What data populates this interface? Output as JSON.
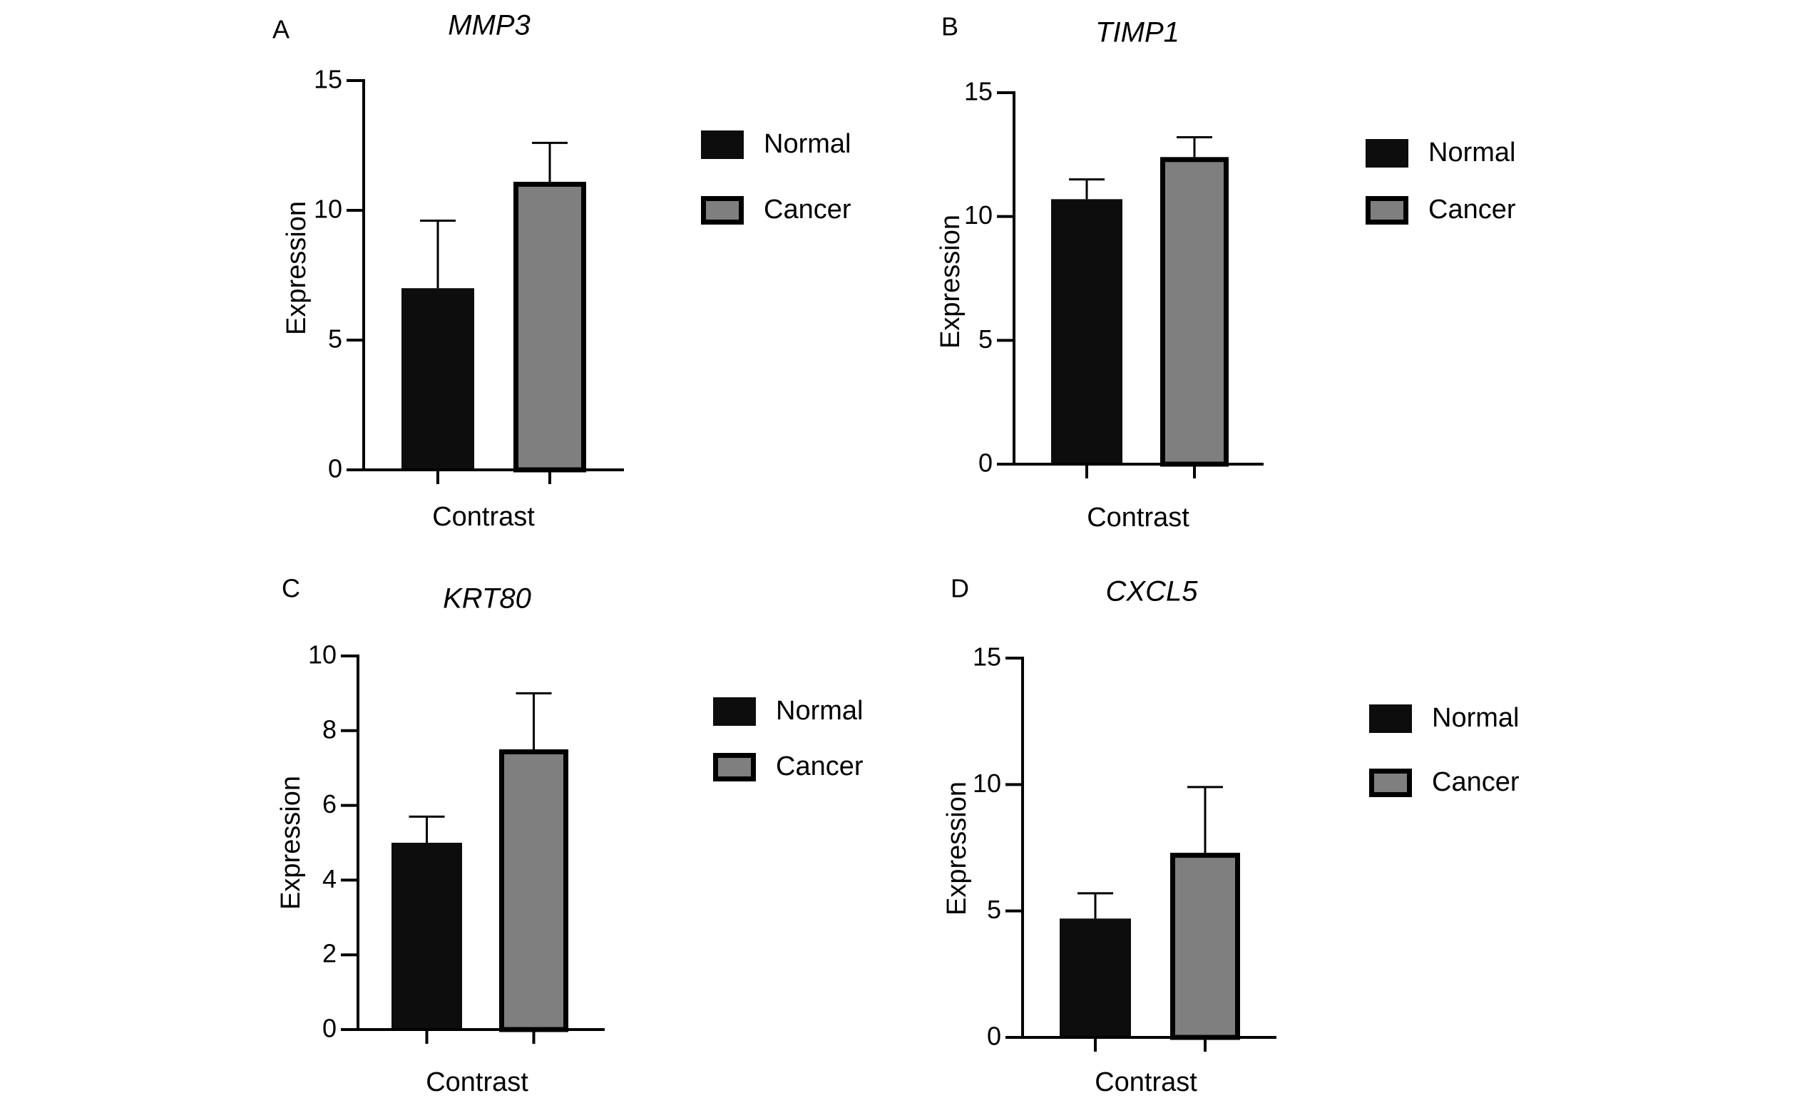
{
  "chart_data": [
    {
      "type": "bar",
      "panel": "A",
      "title": "MMP3",
      "xlabel": "Contrast",
      "ylabel": "Expression",
      "ylim": [
        0,
        15
      ],
      "yticks": [
        "0",
        "5",
        "10",
        "15"
      ],
      "categories": [
        "Contrast"
      ],
      "series": [
        {
          "name": "Normal",
          "values": [
            7.0
          ],
          "error": [
            2.6
          ]
        },
        {
          "name": "Cancer",
          "values": [
            11.1
          ],
          "error": [
            1.5
          ]
        }
      ]
    },
    {
      "type": "bar",
      "panel": "B",
      "title": "TIMP1",
      "xlabel": "Contrast",
      "ylabel": "Expression",
      "ylim": [
        0,
        15
      ],
      "yticks": [
        "0",
        "5",
        "10",
        "15"
      ],
      "categories": [
        "Contrast"
      ],
      "series": [
        {
          "name": "Normal",
          "values": [
            10.7
          ],
          "error": [
            0.8
          ]
        },
        {
          "name": "Cancer",
          "values": [
            12.4
          ],
          "error": [
            0.8
          ]
        }
      ]
    },
    {
      "type": "bar",
      "panel": "C",
      "title": "KRT80",
      "xlabel": "Contrast",
      "ylabel": "Expression",
      "ylim": [
        0,
        10
      ],
      "yticks": [
        "0",
        "2",
        "4",
        "6",
        "8",
        "10"
      ],
      "categories": [
        "Contrast"
      ],
      "series": [
        {
          "name": "Normal",
          "values": [
            5.0
          ],
          "error": [
            0.7
          ]
        },
        {
          "name": "Cancer",
          "values": [
            7.5
          ],
          "error": [
            1.5
          ]
        }
      ]
    },
    {
      "type": "bar",
      "panel": "D",
      "title": "CXCL5",
      "xlabel": "Contrast",
      "ylabel": "Expression",
      "ylim": [
        0,
        15
      ],
      "yticks": [
        "0",
        "5",
        "10",
        "15"
      ],
      "categories": [
        "Contrast"
      ],
      "series": [
        {
          "name": "Normal",
          "values": [
            4.7
          ],
          "error": [
            1.0
          ]
        },
        {
          "name": "Cancer",
          "values": [
            7.3
          ],
          "error": [
            2.6
          ]
        }
      ]
    }
  ],
  "colors": {
    "normal_fill": "#0d0d0d",
    "cancer_fill": "#7f7f7f",
    "cancer_border": "#000000",
    "axis": "#000000"
  }
}
